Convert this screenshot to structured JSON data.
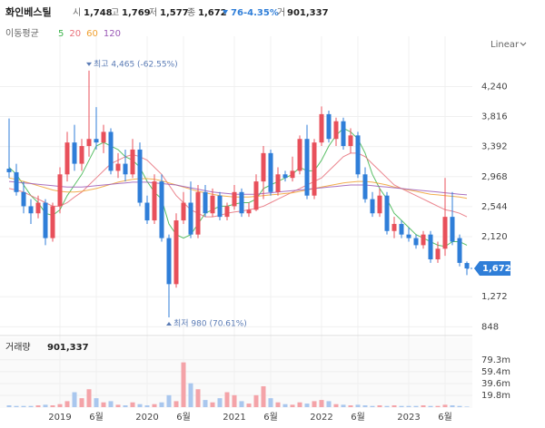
{
  "header": {
    "name": "화인베스틸",
    "open_label": "시",
    "open": "1,748",
    "high_label": "고",
    "high": "1,769",
    "low_label": "저",
    "low": "1,577",
    "close_label": "종",
    "close": "1,672",
    "change": "76",
    "change_pct": "-4.35%",
    "volume_label": "거",
    "volume": "901,337"
  },
  "chart_data": [
    {
      "type": "candlestick",
      "scale_label": "Linear",
      "legend_title": "이동평균",
      "categories": [
        null,
        null,
        null,
        null,
        null,
        null,
        null,
        "2019",
        null,
        null,
        null,
        null,
        "6월",
        null,
        null,
        null,
        null,
        null,
        null,
        "2020",
        null,
        null,
        null,
        null,
        "6월",
        null,
        null,
        null,
        null,
        null,
        null,
        "2021",
        null,
        null,
        null,
        null,
        "6월",
        null,
        null,
        null,
        null,
        null,
        null,
        "2022",
        null,
        null,
        null,
        null,
        "6월",
        null,
        null,
        null,
        null,
        null,
        null,
        "2023",
        null,
        null,
        null,
        null,
        "6월",
        null,
        null,
        null
      ],
      "open": [
        3080,
        3030,
        2750,
        2550,
        2450,
        2600,
        2100,
        2550,
        3000,
        3450,
        3150,
        3400,
        3500,
        3450,
        3600,
        3050,
        3150,
        3000,
        3350,
        2600,
        2350,
        2900,
        2100,
        1450,
        2350,
        2600,
        2150,
        2750,
        2450,
        2700,
        2400,
        2550,
        2750,
        2450,
        2500,
        2900,
        3300,
        2750,
        3000,
        2950,
        3050,
        3500,
        2700,
        3450,
        3850,
        3500,
        3750,
        3400,
        3550,
        3000,
        2650,
        2450,
        2700,
        2200,
        2300,
        2150,
        2100,
        2000,
        2150,
        1800,
        1950,
        2400,
        2100,
        1748
      ],
      "high": [
        3790,
        3150,
        2900,
        2650,
        2700,
        2650,
        2600,
        3100,
        3600,
        3700,
        3500,
        4465,
        3950,
        3700,
        3650,
        3300,
        3350,
        3500,
        3450,
        2700,
        3000,
        3000,
        2150,
        2450,
        2750,
        2900,
        2850,
        2850,
        2800,
        2750,
        2600,
        2850,
        2800,
        2600,
        3000,
        3400,
        3350,
        3100,
        3050,
        3250,
        3550,
        3700,
        3500,
        3960,
        3900,
        3800,
        3800,
        3650,
        3600,
        3100,
        2750,
        2800,
        2750,
        2400,
        2350,
        2250,
        2150,
        2200,
        2200,
        2050,
        2950,
        2750,
        2150,
        1769
      ],
      "low": [
        2950,
        2700,
        2450,
        2300,
        2380,
        2000,
        2050,
        2450,
        2900,
        3050,
        3050,
        3250,
        3350,
        3300,
        3000,
        2950,
        2900,
        2950,
        2550,
        2300,
        2300,
        2050,
        980,
        1400,
        2300,
        2100,
        2100,
        2400,
        2400,
        2350,
        2350,
        2500,
        2400,
        2400,
        2480,
        2650,
        2700,
        2700,
        2900,
        2900,
        3000,
        2650,
        2650,
        3400,
        3450,
        3400,
        3350,
        3300,
        2950,
        2600,
        2400,
        2400,
        2150,
        2100,
        2100,
        2050,
        1950,
        1950,
        1750,
        1750,
        1850,
        2000,
        1700,
        1577
      ],
      "close": [
        3030,
        2750,
        2550,
        2450,
        2600,
        2100,
        2550,
        3000,
        3450,
        3150,
        3400,
        3500,
        3450,
        3600,
        3050,
        3150,
        3000,
        3350,
        2600,
        2350,
        2900,
        2100,
        1450,
        2350,
        2600,
        2150,
        2750,
        2450,
        2700,
        2400,
        2550,
        2750,
        2450,
        2500,
        2900,
        3300,
        2750,
        3000,
        2950,
        3050,
        3500,
        2700,
        3450,
        3850,
        3500,
        3750,
        3400,
        3550,
        3000,
        2650,
        2450,
        2700,
        2200,
        2300,
        2150,
        2100,
        2000,
        2150,
        1800,
        1950,
        2400,
        2050,
        1750,
        1672
      ],
      "up_color": "#e8505b",
      "down_color": "#2f7ed8",
      "ylim": [
        750,
        4950
      ],
      "yticks": [
        {
          "value": 848,
          "label": "848"
        },
        {
          "value": 1272,
          "label": "1,272"
        },
        {
          "value": 2120,
          "label": "2,120"
        },
        {
          "value": 2544,
          "label": "2,544"
        },
        {
          "value": 2968,
          "label": "2,968"
        },
        {
          "value": 3392,
          "label": "3,392"
        },
        {
          "value": 3816,
          "label": "3,816"
        },
        {
          "value": 4240,
          "label": "4,240"
        }
      ],
      "grid": true,
      "moving_averages": [
        {
          "name": "5",
          "color": "#3cb44b",
          "values": [
            3100,
            3000,
            2850,
            2700,
            2600,
            2450,
            2420,
            2500,
            2700,
            2850,
            3000,
            3200,
            3400,
            3450,
            3400,
            3350,
            3250,
            3200,
            3100,
            2900,
            2750,
            2650,
            2300,
            2150,
            2100,
            2150,
            2300,
            2450,
            2500,
            2550,
            2550,
            2580,
            2600,
            2600,
            2650,
            2800,
            2850,
            2900,
            2950,
            3000,
            3100,
            3050,
            3050,
            3200,
            3400,
            3550,
            3650,
            3600,
            3500,
            3300,
            3000,
            2800,
            2650,
            2450,
            2350,
            2250,
            2150,
            2100,
            2050,
            2000,
            1980,
            2050,
            2050,
            2000
          ]
        },
        {
          "name": "20",
          "color": "#e8707a",
          "values": [
            2800,
            2780,
            2750,
            2700,
            2650,
            2600,
            2550,
            2550,
            2600,
            2680,
            2750,
            2850,
            2950,
            3050,
            3150,
            3200,
            3250,
            3280,
            3250,
            3200,
            3100,
            3000,
            2850,
            2700,
            2600,
            2500,
            2450,
            2400,
            2400,
            2420,
            2450,
            2470,
            2480,
            2500,
            2520,
            2550,
            2600,
            2650,
            2700,
            2750,
            2800,
            2850,
            2900,
            2950,
            3050,
            3150,
            3250,
            3300,
            3300,
            3250,
            3150,
            3050,
            2950,
            2850,
            2800,
            2750,
            2700,
            2650,
            2600,
            2550,
            2500,
            2480,
            2450,
            2400
          ]
        },
        {
          "name": "60",
          "color": "#f0a030",
          "values": [
            2950,
            2930,
            2900,
            2870,
            2840,
            2810,
            2780,
            2760,
            2750,
            2750,
            2760,
            2780,
            2800,
            2830,
            2860,
            2890,
            2910,
            2930,
            2940,
            2940,
            2930,
            2910,
            2880,
            2850,
            2820,
            2790,
            2760,
            2740,
            2720,
            2700,
            2690,
            2680,
            2680,
            2680,
            2690,
            2700,
            2710,
            2720,
            2730,
            2740,
            2760,
            2780,
            2800,
            2820,
            2840,
            2860,
            2880,
            2890,
            2900,
            2900,
            2890,
            2870,
            2850,
            2820,
            2800,
            2780,
            2760,
            2740,
            2720,
            2710,
            2700,
            2690,
            2680,
            2660
          ]
        },
        {
          "name": "120",
          "color": "#9b59b6",
          "values": [
            2900,
            2890,
            2880,
            2870,
            2860,
            2850,
            2840,
            2830,
            2820,
            2820,
            2820,
            2830,
            2840,
            2850,
            2860,
            2870,
            2880,
            2890,
            2890,
            2890,
            2880,
            2870,
            2860,
            2850,
            2830,
            2810,
            2790,
            2770,
            2750,
            2740,
            2730,
            2720,
            2720,
            2720,
            2720,
            2730,
            2740,
            2750,
            2760,
            2770,
            2780,
            2790,
            2800,
            2810,
            2820,
            2830,
            2840,
            2850,
            2850,
            2850,
            2840,
            2830,
            2820,
            2810,
            2800,
            2790,
            2780,
            2770,
            2760,
            2750,
            2740,
            2730,
            2720,
            2710
          ]
        }
      ],
      "max_annotation": "최고 4,465 (-62.55%)",
      "min_annotation": "최저 980 (70.61%)",
      "current_price_label": "1,672"
    },
    {
      "type": "bar",
      "title": "거래량",
      "current_value_label": "901,337",
      "values": [
        3,
        2,
        2,
        2,
        3,
        4,
        3,
        5,
        10,
        25,
        15,
        30,
        15,
        8,
        10,
        4,
        3,
        8,
        5,
        3,
        5,
        8,
        20,
        10,
        75,
        40,
        30,
        12,
        8,
        15,
        25,
        20,
        10,
        6,
        20,
        35,
        15,
        8,
        5,
        4,
        8,
        6,
        10,
        12,
        10,
        5,
        4,
        3,
        4,
        3,
        2,
        3,
        2,
        3,
        2,
        2,
        2,
        3,
        2,
        2,
        4,
        3,
        2,
        0.901337
      ],
      "up_color": "#f4a3a8",
      "down_color": "#a9c7ee",
      "ylim": [
        0,
        117
      ],
      "yticks": [
        {
          "value": 19.8,
          "label": "19.8m"
        },
        {
          "value": 39.6,
          "label": "39.6m"
        },
        {
          "value": 59.4,
          "label": "59.4m"
        },
        {
          "value": 79.3,
          "label": "79.3m"
        }
      ]
    }
  ]
}
